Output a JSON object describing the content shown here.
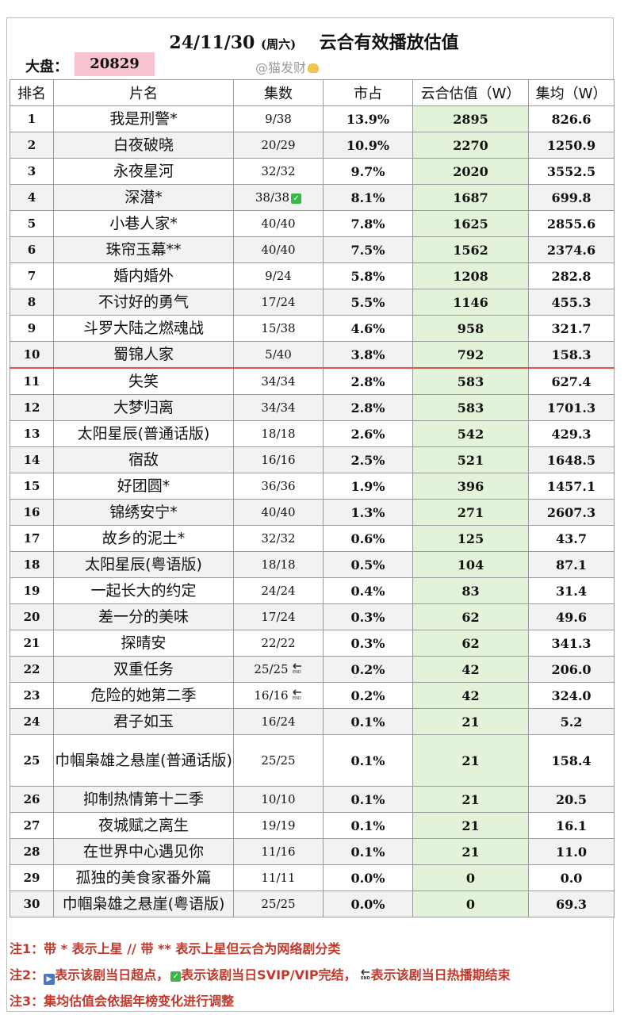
{
  "header": {
    "date": "24/11/30",
    "weekday": "(周六)",
    "title": "云合有效播放估值",
    "dapan_label": "大盘：",
    "dapan_value": "20829",
    "watermark": "@猫发财"
  },
  "columns": [
    "排名",
    "片名",
    "集数",
    "市占",
    "云合估值（W）",
    "集均（W）"
  ],
  "rows": [
    {
      "rank": "1",
      "name": "我是刑警*",
      "eps": "9/38",
      "share": "13.9%",
      "value": "2895",
      "avg": "826.6"
    },
    {
      "rank": "2",
      "name": "白夜破晓",
      "eps": "20/29",
      "share": "10.9%",
      "value": "2270",
      "avg": "1250.9"
    },
    {
      "rank": "3",
      "name": "永夜星河",
      "eps": "32/32",
      "share": "9.7%",
      "value": "2020",
      "avg": "3552.5"
    },
    {
      "rank": "4",
      "name": "深潜*",
      "eps": "38/38",
      "share": "8.1%",
      "value": "1687",
      "avg": "699.8",
      "icon": "check"
    },
    {
      "rank": "5",
      "name": "小巷人家*",
      "eps": "40/40",
      "share": "7.8%",
      "value": "1625",
      "avg": "2855.6"
    },
    {
      "rank": "6",
      "name": "珠帘玉幕**",
      "eps": "40/40",
      "share": "7.5%",
      "value": "1562",
      "avg": "2374.6"
    },
    {
      "rank": "7",
      "name": "婚内婚外",
      "eps": "9/24",
      "share": "5.8%",
      "value": "1208",
      "avg": "282.8"
    },
    {
      "rank": "8",
      "name": "不讨好的勇气",
      "eps": "17/24",
      "share": "5.5%",
      "value": "1146",
      "avg": "455.3"
    },
    {
      "rank": "9",
      "name": "斗罗大陆之燃魂战",
      "eps": "15/38",
      "share": "4.6%",
      "value": "958",
      "avg": "321.7"
    },
    {
      "rank": "10",
      "name": "蜀锦人家",
      "eps": "5/40",
      "share": "3.8%",
      "value": "792",
      "avg": "158.3",
      "cutoff": true
    },
    {
      "rank": "11",
      "name": "失笑",
      "eps": "34/34",
      "share": "2.8%",
      "value": "583",
      "avg": "627.4"
    },
    {
      "rank": "12",
      "name": "大梦归离",
      "eps": "34/34",
      "share": "2.8%",
      "value": "583",
      "avg": "1701.3"
    },
    {
      "rank": "13",
      "name": "太阳星辰(普通话版)",
      "eps": "18/18",
      "share": "2.6%",
      "value": "542",
      "avg": "429.3"
    },
    {
      "rank": "14",
      "name": "宿敌",
      "eps": "16/16",
      "share": "2.5%",
      "value": "521",
      "avg": "1648.5"
    },
    {
      "rank": "15",
      "name": "好团圆*",
      "eps": "36/36",
      "share": "1.9%",
      "value": "396",
      "avg": "1457.1"
    },
    {
      "rank": "16",
      "name": "锦绣安宁*",
      "eps": "40/40",
      "share": "1.3%",
      "value": "271",
      "avg": "2607.3"
    },
    {
      "rank": "17",
      "name": "故乡的泥土*",
      "eps": "32/32",
      "share": "0.6%",
      "value": "125",
      "avg": "43.7"
    },
    {
      "rank": "18",
      "name": "太阳星辰(粤语版)",
      "eps": "18/18",
      "share": "0.5%",
      "value": "104",
      "avg": "87.1"
    },
    {
      "rank": "19",
      "name": "一起长大的约定",
      "eps": "24/24",
      "share": "0.4%",
      "value": "83",
      "avg": "31.4"
    },
    {
      "rank": "20",
      "name": "差一分的美味",
      "eps": "17/24",
      "share": "0.3%",
      "value": "62",
      "avg": "49.6"
    },
    {
      "rank": "21",
      "name": "探晴安",
      "eps": "22/22",
      "share": "0.3%",
      "value": "62",
      "avg": "341.3"
    },
    {
      "rank": "22",
      "name": "双重任务",
      "eps": "25/25",
      "share": "0.2%",
      "value": "42",
      "avg": "206.0",
      "icon": "end"
    },
    {
      "rank": "23",
      "name": "危险的她第二季",
      "eps": "16/16",
      "share": "0.2%",
      "value": "42",
      "avg": "324.0",
      "icon": "end"
    },
    {
      "rank": "24",
      "name": "君子如玉",
      "eps": "16/24",
      "share": "0.1%",
      "value": "21",
      "avg": "5.2"
    },
    {
      "rank": "25",
      "name": "巾帼枭雄之悬崖(普通话版)",
      "eps": "25/25",
      "share": "0.1%",
      "value": "21",
      "avg": "158.4",
      "tall": true
    },
    {
      "rank": "26",
      "name": "抑制热情第十二季",
      "eps": "10/10",
      "share": "0.1%",
      "value": "21",
      "avg": "20.5"
    },
    {
      "rank": "27",
      "name": "夜城赋之离生",
      "eps": "19/19",
      "share": "0.1%",
      "value": "21",
      "avg": "16.1"
    },
    {
      "rank": "28",
      "name": "在世界中心遇见你",
      "eps": "11/16",
      "share": "0.1%",
      "value": "21",
      "avg": "11.0"
    },
    {
      "rank": "29",
      "name": "孤独的美食家番外篇",
      "eps": "11/11",
      "share": "0.0%",
      "value": "0",
      "avg": "0.0"
    },
    {
      "rank": "30",
      "name": "巾帼枭雄之悬崖(粤语版)",
      "eps": "25/25",
      "share": "0.0%",
      "value": "0",
      "avg": "69.3"
    }
  ],
  "notes": {
    "note1": "注1：带 * 表示上星 // 带 ** 表示上星但云合为网络剧分类",
    "note2_prefix": "注2：",
    "note2_a": "表示该剧当日超点，",
    "note2_b": "表示该剧当日SVIP/VIP完结，",
    "note2_c": "表示该剧当日热播期结束",
    "note3": "注3：集均估值会依据年榜变化进行调整"
  },
  "colors": {
    "value_column_bg": "#e3f3d9",
    "dapan_bg": "#f7c4cf",
    "cutoff_line": "#d9534f",
    "note_text": "#c0392b"
  }
}
